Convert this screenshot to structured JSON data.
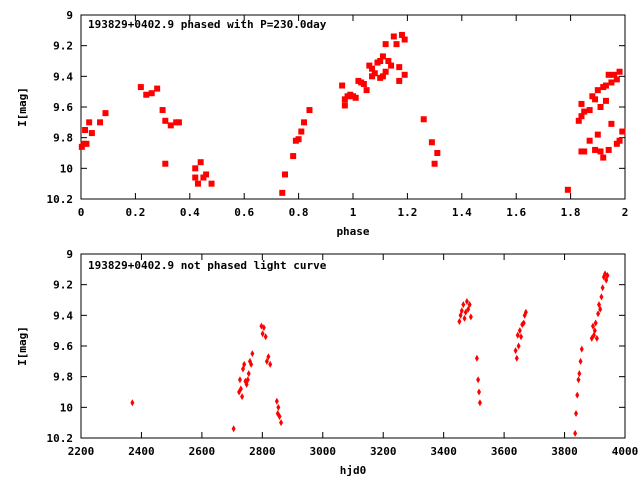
{
  "chart_data": [
    {
      "type": "scatter",
      "title": "193829+0402.9 phased with P=230.0day",
      "xlabel": "phase",
      "ylabel": "I[mag]",
      "xlim": [
        0,
        2
      ],
      "ylim": [
        9,
        10.2
      ],
      "y_inverted": true,
      "grid": false,
      "marker_color": "#ff0000",
      "marker": "filled-square",
      "x_ticks": [
        "0",
        "0.2",
        "0.4",
        "0.6",
        "0.8",
        "1",
        "1.2",
        "1.4",
        "1.6",
        "1.8",
        "2"
      ],
      "y_ticks": [
        "9",
        "9.2",
        "9.4",
        "9.6",
        "9.8",
        "10",
        "10.2"
      ],
      "points": [
        [
          0.003,
          9.86
        ],
        [
          0.01,
          9.84
        ],
        [
          0.015,
          9.75
        ],
        [
          0.02,
          9.84
        ],
        [
          0.03,
          9.7
        ],
        [
          0.04,
          9.77
        ],
        [
          0.07,
          9.7
        ],
        [
          0.09,
          9.64
        ],
        [
          0.22,
          9.47
        ],
        [
          0.24,
          9.52
        ],
        [
          0.26,
          9.51
        ],
        [
          0.28,
          9.48
        ],
        [
          0.3,
          9.62
        ],
        [
          0.31,
          9.69
        ],
        [
          0.31,
          9.97
        ],
        [
          0.33,
          9.72
        ],
        [
          0.35,
          9.7
        ],
        [
          0.36,
          9.7
        ],
        [
          0.42,
          10.0
        ],
        [
          0.42,
          10.06
        ],
        [
          0.43,
          10.1
        ],
        [
          0.44,
          9.96
        ],
        [
          0.45,
          10.06
        ],
        [
          0.46,
          10.04
        ],
        [
          0.48,
          10.1
        ],
        [
          0.74,
          10.16
        ],
        [
          0.75,
          10.04
        ],
        [
          0.78,
          9.92
        ],
        [
          0.79,
          9.82
        ],
        [
          0.8,
          9.81
        ],
        [
          0.81,
          9.76
        ],
        [
          0.82,
          9.7
        ],
        [
          0.84,
          9.62
        ],
        [
          0.96,
          9.46
        ],
        [
          0.97,
          9.59
        ],
        [
          0.97,
          9.55
        ],
        [
          0.98,
          9.53
        ],
        [
          0.99,
          9.52
        ],
        [
          1.0,
          9.53
        ],
        [
          1.01,
          9.54
        ],
        [
          1.02,
          9.43
        ],
        [
          1.03,
          9.44
        ],
        [
          1.04,
          9.45
        ],
        [
          1.05,
          9.49
        ],
        [
          1.06,
          9.33
        ],
        [
          1.07,
          9.35
        ],
        [
          1.07,
          9.4
        ],
        [
          1.08,
          9.38
        ],
        [
          1.09,
          9.31
        ],
        [
          1.1,
          9.3
        ],
        [
          1.1,
          9.41
        ],
        [
          1.11,
          9.27
        ],
        [
          1.11,
          9.4
        ],
        [
          1.12,
          9.19
        ],
        [
          1.12,
          9.37
        ],
        [
          1.13,
          9.3
        ],
        [
          1.14,
          9.33
        ],
        [
          1.15,
          9.14
        ],
        [
          1.16,
          9.19
        ],
        [
          1.17,
          9.43
        ],
        [
          1.17,
          9.34
        ],
        [
          1.18,
          9.13
        ],
        [
          1.19,
          9.16
        ],
        [
          1.19,
          9.39
        ],
        [
          1.26,
          9.68
        ],
        [
          1.29,
          9.83
        ],
        [
          1.3,
          9.97
        ],
        [
          1.31,
          9.9
        ],
        [
          1.79,
          10.14
        ],
        [
          1.83,
          9.69
        ],
        [
          1.84,
          9.66
        ],
        [
          1.84,
          9.89
        ],
        [
          1.84,
          9.58
        ],
        [
          1.85,
          9.63
        ],
        [
          1.85,
          9.89
        ],
        [
          1.87,
          9.62
        ],
        [
          1.87,
          9.82
        ],
        [
          1.88,
          9.53
        ],
        [
          1.89,
          9.55
        ],
        [
          1.89,
          9.88
        ],
        [
          1.9,
          9.49
        ],
        [
          1.9,
          9.78
        ],
        [
          1.91,
          9.6
        ],
        [
          1.91,
          9.89
        ],
        [
          1.92,
          9.47
        ],
        [
          1.92,
          9.93
        ],
        [
          1.93,
          9.56
        ],
        [
          1.93,
          9.46
        ],
        [
          1.94,
          9.39
        ],
        [
          1.94,
          9.88
        ],
        [
          1.95,
          9.44
        ],
        [
          1.95,
          9.71
        ],
        [
          1.96,
          9.39
        ],
        [
          1.97,
          9.84
        ],
        [
          1.97,
          9.42
        ],
        [
          1.98,
          9.37
        ],
        [
          1.98,
          9.82
        ],
        [
          1.99,
          9.76
        ]
      ]
    },
    {
      "type": "scatter",
      "title": "193829+0402.9 not phased light curve",
      "xlabel": "hjd0",
      "ylabel": "I[mag]",
      "xlim": [
        2200,
        4000
      ],
      "ylim": [
        9,
        10.2
      ],
      "y_inverted": true,
      "grid": false,
      "marker_color": "#ff0000",
      "marker": "filled-diamond",
      "x_ticks": [
        "2200",
        "2400",
        "2600",
        "2800",
        "3000",
        "3200",
        "3400",
        "3600",
        "3800",
        "4000"
      ],
      "y_ticks": [
        "9",
        "9.2",
        "9.4",
        "9.6",
        "9.8",
        "10",
        "10.2"
      ],
      "points": [
        [
          2370,
          9.97
        ],
        [
          2705,
          10.14
        ],
        [
          2723,
          9.9
        ],
        [
          2726,
          9.82
        ],
        [
          2729,
          9.88
        ],
        [
          2733,
          9.93
        ],
        [
          2736,
          9.75
        ],
        [
          2740,
          9.72
        ],
        [
          2744,
          9.83
        ],
        [
          2748,
          9.85
        ],
        [
          2752,
          9.82
        ],
        [
          2755,
          9.78
        ],
        [
          2759,
          9.7
        ],
        [
          2763,
          9.72
        ],
        [
          2767,
          9.65
        ],
        [
          2797,
          9.47
        ],
        [
          2801,
          9.52
        ],
        [
          2805,
          9.48
        ],
        [
          2811,
          9.54
        ],
        [
          2815,
          9.7
        ],
        [
          2820,
          9.67
        ],
        [
          2826,
          9.72
        ],
        [
          2848,
          9.96
        ],
        [
          2851,
          10.04
        ],
        [
          2853,
          10.0
        ],
        [
          2857,
          10.06
        ],
        [
          2862,
          10.1
        ],
        [
          3452,
          9.44
        ],
        [
          3456,
          9.4
        ],
        [
          3460,
          9.37
        ],
        [
          3465,
          9.33
        ],
        [
          3469,
          9.42
        ],
        [
          3473,
          9.38
        ],
        [
          3477,
          9.31
        ],
        [
          3481,
          9.36
        ],
        [
          3486,
          9.33
        ],
        [
          3490,
          9.41
        ],
        [
          3510,
          9.68
        ],
        [
          3514,
          9.82
        ],
        [
          3517,
          9.9
        ],
        [
          3520,
          9.97
        ],
        [
          3638,
          9.63
        ],
        [
          3642,
          9.68
        ],
        [
          3645,
          9.53
        ],
        [
          3648,
          9.6
        ],
        [
          3652,
          9.5
        ],
        [
          3656,
          9.54
        ],
        [
          3660,
          9.46
        ],
        [
          3665,
          9.45
        ],
        [
          3668,
          9.4
        ],
        [
          3672,
          9.38
        ],
        [
          3835,
          10.17
        ],
        [
          3838,
          10.04
        ],
        [
          3842,
          9.92
        ],
        [
          3846,
          9.82
        ],
        [
          3849,
          9.78
        ],
        [
          3853,
          9.7
        ],
        [
          3857,
          9.62
        ],
        [
          3890,
          9.55
        ],
        [
          3894,
          9.47
        ],
        [
          3897,
          9.53
        ],
        [
          3900,
          9.5
        ],
        [
          3903,
          9.45
        ],
        [
          3907,
          9.55
        ],
        [
          3911,
          9.39
        ],
        [
          3914,
          9.33
        ],
        [
          3918,
          9.36
        ],
        [
          3922,
          9.28
        ],
        [
          3926,
          9.22
        ],
        [
          3930,
          9.15
        ],
        [
          3934,
          9.13
        ],
        [
          3938,
          9.17
        ],
        [
          3942,
          9.14
        ]
      ]
    }
  ]
}
